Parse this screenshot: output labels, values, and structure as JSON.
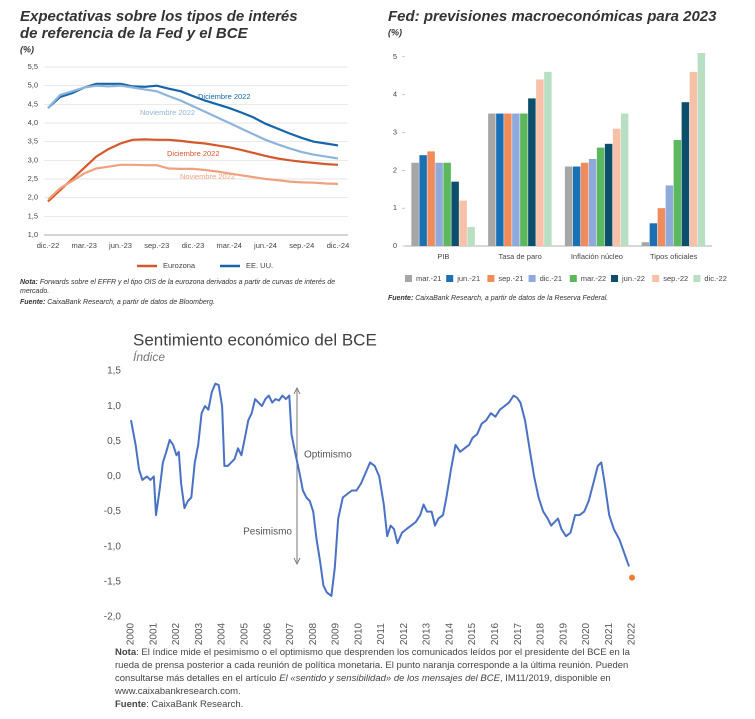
{
  "chart_data": [
    {
      "type": "line",
      "title_lines": [
        "Expectativas sobre los tipos de interés",
        "de referencia de la Fed y el BCE"
      ],
      "subtitle": "(%)",
      "categories": [
        "dic.-22",
        null,
        null,
        "mar.-23",
        null,
        null,
        "jun.-23",
        null,
        null,
        "sep.-23",
        null,
        null,
        "dic.-23",
        null,
        null,
        "mar.-24",
        null,
        null,
        "jun.-24",
        null,
        null,
        "sep.-24",
        null,
        null,
        "dic.-24"
      ],
      "series": [
        {
          "name": "Diciembre 2022",
          "color": "#1565a8",
          "values": [
            4.4,
            4.7,
            4.8,
            4.95,
            5.05,
            5.05,
            5.05,
            4.98,
            4.97,
            5.0,
            4.92,
            4.85,
            4.72,
            4.6,
            4.5,
            4.4,
            4.28,
            4.15,
            3.98,
            3.85,
            3.72,
            3.6,
            3.5,
            3.45,
            3.4
          ]
        },
        {
          "name": "Noviembre 2022",
          "color": "#8fb4dc",
          "values": [
            4.4,
            4.75,
            4.85,
            4.95,
            5.0,
            4.98,
            5.0,
            4.95,
            4.9,
            4.85,
            4.72,
            4.6,
            4.45,
            4.3,
            4.15,
            4.0,
            3.85,
            3.7,
            3.55,
            3.43,
            3.32,
            3.22,
            3.15,
            3.1,
            3.05
          ]
        },
        {
          "name": "Diciembre 2022",
          "color": "#d4582a",
          "values": [
            1.9,
            2.2,
            2.5,
            2.8,
            3.1,
            3.3,
            3.45,
            3.55,
            3.56,
            3.55,
            3.55,
            3.52,
            3.48,
            3.45,
            3.4,
            3.35,
            3.28,
            3.2,
            3.12,
            3.05,
            3.0,
            2.96,
            2.93,
            2.9,
            2.88
          ]
        },
        {
          "name": "Noviembre 2022",
          "color": "#eea27f",
          "values": [
            1.95,
            2.25,
            2.45,
            2.65,
            2.78,
            2.83,
            2.88,
            2.88,
            2.87,
            2.87,
            2.78,
            2.77,
            2.77,
            2.74,
            2.7,
            2.65,
            2.6,
            2.55,
            2.5,
            2.47,
            2.43,
            2.41,
            2.4,
            2.38,
            2.37
          ]
        }
      ],
      "legend": [
        {
          "label": "Eurozona",
          "color": "#d4582a"
        },
        {
          "label": "EE. UU.",
          "color": "#1565a8"
        }
      ],
      "ylim": [
        1,
        5.5
      ],
      "yticks": [
        {
          "value": 1,
          "label": "1,0"
        },
        {
          "value": 1.5,
          "label": "1,5"
        },
        {
          "value": 2,
          "label": "2,0"
        },
        {
          "value": 2.5,
          "label": "2,5"
        },
        {
          "value": 3,
          "label": "3,0"
        },
        {
          "value": 3.5,
          "label": "3,5"
        },
        {
          "value": 4,
          "label": "4,0"
        },
        {
          "value": 4.5,
          "label": "4,5"
        },
        {
          "value": 5,
          "label": "5,0"
        },
        {
          "value": 5.5,
          "label": "5,5"
        }
      ],
      "grid": true,
      "note_label": "Nota:",
      "note": " Forwards sobre el EFFR y el tipo OIS de la eurozona derivados a partir de curvas de interés de mercado.",
      "source_label": "Fuente:",
      "source": " CaixaBank Research, a partir de datos de Bloomberg."
    },
    {
      "type": "bar",
      "title": "Fed: previsiones macroeconómicas para 2023",
      "subtitle": "(%)",
      "categories": [
        "PIB",
        "Tasa de paro",
        "Inflación núcleo",
        "Tipos oficiales"
      ],
      "series": [
        {
          "name": "mar.-21",
          "color": "#a6a6a6",
          "values": [
            2.2,
            3.5,
            2.1,
            0.1
          ]
        },
        {
          "name": "jun.-21",
          "color": "#1a6fb5",
          "values": [
            2.4,
            3.5,
            2.1,
            0.6
          ]
        },
        {
          "name": "sep.-21",
          "color": "#f08b5b",
          "values": [
            2.5,
            3.5,
            2.2,
            1.0
          ]
        },
        {
          "name": "dic.-21",
          "color": "#8eaadb",
          "values": [
            2.2,
            3.5,
            2.3,
            1.6
          ]
        },
        {
          "name": "mar.-22",
          "color": "#5cb85c",
          "values": [
            2.2,
            3.5,
            2.6,
            2.8
          ]
        },
        {
          "name": "jun.-22",
          "color": "#0b4f6c",
          "values": [
            1.7,
            3.9,
            2.7,
            3.8
          ]
        },
        {
          "name": "sep.-22",
          "color": "#f7c0a8",
          "values": [
            1.2,
            4.4,
            3.1,
            4.6
          ]
        },
        {
          "name": "dic.-22",
          "color": "#b8dfc2",
          "values": [
            0.5,
            4.6,
            3.5,
            5.1
          ]
        }
      ],
      "ylim": [
        0,
        5.1
      ],
      "yticks": [
        0,
        1,
        2,
        3,
        4,
        5
      ],
      "source_label": "Fuente:",
      "source": " CaixaBank Research, a partir de datos de la Reserva Federal."
    },
    {
      "type": "line",
      "title": "Sentimiento económico del BCE",
      "subtitle": "Índice",
      "color": "#4a72c4",
      "x": [
        2000.0,
        2000.2,
        2000.35,
        2000.5,
        2000.7,
        2000.85,
        2001.0,
        2001.1,
        2001.25,
        2001.4,
        2001.55,
        2001.7,
        2001.85,
        2002.0,
        2002.1,
        2002.2,
        2002.35,
        2002.5,
        2002.65,
        2002.8,
        2002.95,
        2003.1,
        2003.25,
        2003.4,
        2003.55,
        2003.7,
        2003.85,
        2004.0,
        2004.1,
        2004.25,
        2004.4,
        2004.55,
        2004.7,
        2004.85,
        2005.0,
        2005.15,
        2005.3,
        2005.45,
        2005.6,
        2005.75,
        2005.9,
        2006.05,
        2006.2,
        2006.35,
        2006.5,
        2006.65,
        2006.8,
        2006.95,
        2007.05,
        2007.2,
        2007.4,
        2007.55,
        2007.7,
        2007.85,
        2008.0,
        2008.15,
        2008.3,
        2008.45,
        2008.6,
        2008.8,
        2008.95,
        2009.1,
        2009.3,
        2009.5,
        2009.7,
        2009.9,
        2010.1,
        2010.3,
        2010.5,
        2010.7,
        2010.9,
        2011.1,
        2011.25,
        2011.4,
        2011.55,
        2011.7,
        2011.9,
        2012.1,
        2012.3,
        2012.5,
        2012.7,
        2012.85,
        2013.0,
        2013.2,
        2013.35,
        2013.5,
        2013.7,
        2013.85,
        2014.05,
        2014.25,
        2014.45,
        2014.65,
        2014.85,
        2015.0,
        2015.2,
        2015.4,
        2015.6,
        2015.8,
        2016.0,
        2016.2,
        2016.4,
        2016.6,
        2016.8,
        2016.95,
        2017.1,
        2017.3,
        2017.5,
        2017.7,
        2017.9,
        2018.1,
        2018.3,
        2018.45,
        2018.6,
        2018.75,
        2018.9,
        2019.1,
        2019.3,
        2019.5,
        2019.7,
        2019.9,
        2020.1,
        2020.3,
        2020.5,
        2020.65,
        2020.8,
        2021.0,
        2021.2,
        2021.45,
        2021.87
      ],
      "values": [
        0.8,
        0.45,
        0.1,
        -0.05,
        0.0,
        -0.05,
        0.0,
        -0.55,
        -0.2,
        0.2,
        0.35,
        0.52,
        0.45,
        0.3,
        0.35,
        -0.1,
        -0.45,
        -0.35,
        -0.3,
        0.2,
        0.45,
        0.9,
        1.0,
        0.95,
        1.2,
        1.32,
        1.3,
        1.0,
        0.15,
        0.15,
        0.2,
        0.25,
        0.4,
        0.3,
        0.55,
        0.8,
        0.9,
        1.1,
        1.05,
        1.0,
        1.1,
        1.15,
        1.05,
        1.1,
        1.08,
        1.15,
        1.1,
        1.15,
        0.6,
        0.35,
        0.05,
        -0.2,
        -0.3,
        -0.35,
        -0.5,
        -0.9,
        -1.2,
        -1.55,
        -1.65,
        -1.7,
        -1.3,
        -0.6,
        -0.3,
        -0.25,
        -0.2,
        -0.2,
        -0.1,
        0.05,
        0.2,
        0.15,
        0.0,
        -0.4,
        -0.85,
        -0.7,
        -0.75,
        -0.95,
        -0.8,
        -0.75,
        -0.7,
        -0.65,
        -0.55,
        -0.4,
        -0.5,
        -0.5,
        -0.7,
        -0.6,
        -0.55,
        -0.3,
        0.1,
        0.45,
        0.35,
        0.4,
        0.45,
        0.55,
        0.6,
        0.75,
        0.8,
        0.9,
        0.85,
        0.95,
        1.0,
        1.05,
        1.15,
        1.12,
        1.05,
        0.8,
        0.4,
        0.0,
        -0.3,
        -0.5,
        -0.6,
        -0.7,
        -0.65,
        -0.6,
        -0.75,
        -0.85,
        -0.8,
        -0.55,
        -0.55,
        -0.5,
        -0.35,
        -0.1,
        0.15,
        0.2,
        -0.1,
        -0.55,
        -0.75,
        -0.9,
        -1.28
      ],
      "last_point": {
        "x": 2022,
        "value": -1.44,
        "color": "#ed7d31"
      },
      "xlim": [
        2000,
        2022
      ],
      "xticks": [
        2000,
        2001,
        2002,
        2003,
        2004,
        2005,
        2006,
        2007,
        2008,
        2009,
        2010,
        2011,
        2012,
        2013,
        2014,
        2015,
        2016,
        2017,
        2018,
        2019,
        2020,
        2021,
        2022
      ],
      "ylim": [
        -2,
        1.5
      ],
      "yticks": [
        {
          "value": -2,
          "label": "-2,0"
        },
        {
          "value": -1.5,
          "label": "-1,5"
        },
        {
          "value": -1,
          "label": "-1,0"
        },
        {
          "value": -0.5,
          "label": "-0,5"
        },
        {
          "value": 0,
          "label": "0,0"
        },
        {
          "value": 0.5,
          "label": "0,5"
        },
        {
          "value": 1,
          "label": "1,0"
        },
        {
          "value": 1.5,
          "label": "1,5"
        }
      ],
      "annotations": [
        "Optimismo",
        "Pesimismo"
      ],
      "note_label": "Nota",
      "note_1": ": El índice mide el pesimismo o el optimismo que desprenden los comunicados leídos por el presidente del BCE en la rueda de prensa posterior a cada reunión de política monetaria. El punto naranja corresponde a la última reunión. Pueden consultarse más detalles en el artículo ",
      "note_italic": "El «sentido y sensibilidad» de los mensajes del BCE",
      "note_2": ", IM11/2019, disponible en www.caixabankresearch.com.",
      "source_label": "Fuente",
      "source": ": CaixaBank Research."
    }
  ]
}
